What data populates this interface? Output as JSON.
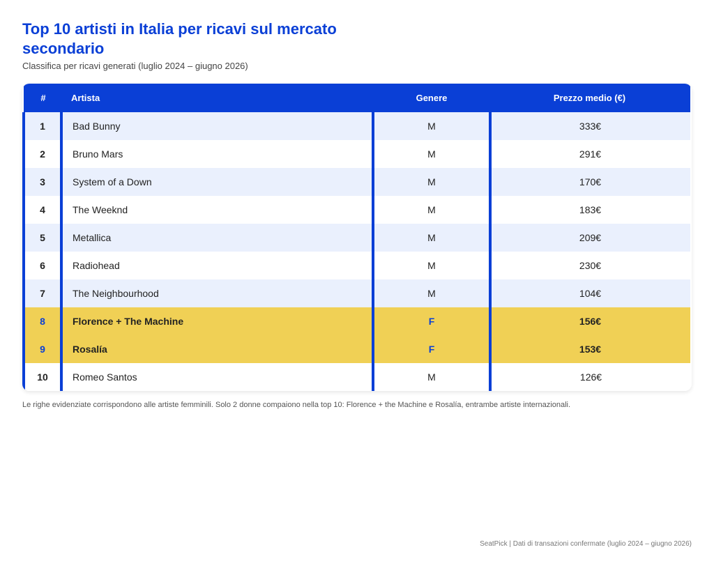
{
  "header": {
    "title": "Top 10 artisti in Italia per ricavi sul mercato secondario",
    "subtitle": "Classifica per ricavi generati (luglio 2024 – giugno 2026)"
  },
  "chart_data": {
    "type": "table",
    "columns": [
      "#",
      "Artista",
      "Genere",
      "Prezzo medio (€)"
    ],
    "rows": [
      {
        "rank": "1",
        "artist": "Bad Bunny",
        "genre": "M",
        "price": "333€",
        "highlight": false
      },
      {
        "rank": "2",
        "artist": "Bruno Mars",
        "genre": "M",
        "price": "291€",
        "highlight": false
      },
      {
        "rank": "3",
        "artist": "System of a Down",
        "genre": "M",
        "price": "170€",
        "highlight": false
      },
      {
        "rank": "4",
        "artist": "The Weeknd",
        "genre": "M",
        "price": "183€",
        "highlight": false
      },
      {
        "rank": "5",
        "artist": "Metallica",
        "genre": "M",
        "price": "209€",
        "highlight": false
      },
      {
        "rank": "6",
        "artist": "Radiohead",
        "genre": "M",
        "price": "230€",
        "highlight": false
      },
      {
        "rank": "7",
        "artist": "The Neighbourhood",
        "genre": "M",
        "price": "104€",
        "highlight": false
      },
      {
        "rank": "8",
        "artist": "Florence + The Machine",
        "genre": "F",
        "price": "156€",
        "highlight": true
      },
      {
        "rank": "9",
        "artist": "Rosalía",
        "genre": "F",
        "price": "153€",
        "highlight": true
      },
      {
        "rank": "10",
        "artist": "Romeo Santos",
        "genre": "M",
        "price": "126€",
        "highlight": false
      }
    ]
  },
  "note": "Le righe evidenziate corrispondono alle artiste femminili. Solo 2 donne compaiono nella top 10: Florence + the Machine e Rosalía, entrambe artiste internazionali.",
  "footer": "SeatPick | Dati di transazioni confermate (luglio 2024 – giugno 2026)",
  "colors": {
    "accent": "#0a3fd6",
    "highlight_row": "#f0d055",
    "alt_row": "#eaf0fd"
  }
}
